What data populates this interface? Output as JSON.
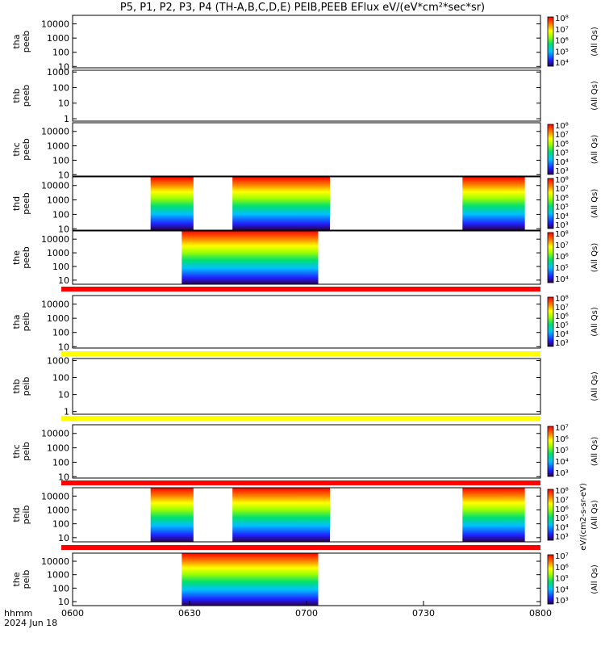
{
  "title": "P5, P1, P2, P3, P4 (TH-A,B,C,D,E) PEIB,PEEB EFlux eV/(eV*cm²*sec*sr)",
  "time_label": "hhmm",
  "date_label": "2024 Jun 18",
  "colors": {
    "red_bar": "#ff0000",
    "yellow_bar": "#ffff00",
    "frame": "#000000"
  },
  "chart_data": {
    "type": "heatmap",
    "x": {
      "start": "06:00",
      "end": "08:00",
      "ticks": [
        "0600",
        "0630",
        "0700",
        "0730",
        "0800"
      ]
    },
    "panels": [
      {
        "probe": "tha",
        "species": "peeb",
        "ylabel": [
          "tha",
          "peeb"
        ],
        "yscale": "log",
        "ylim": [
          8,
          40000
        ],
        "yticks": [
          "10",
          "100",
          "1000",
          "10000"
        ],
        "cb": {
          "ticks": [
            "10⁴",
            "10⁵",
            "10⁶",
            "10⁷",
            "10⁸"
          ],
          "label": "(All Qs)"
        },
        "intervals": []
      },
      {
        "probe": "thb",
        "species": "peeb",
        "ylabel": [
          "thb",
          "peeb"
        ],
        "yscale": "log",
        "ylim": [
          0.7,
          1300
        ],
        "yticks": [
          "1",
          "10",
          "100",
          "1000"
        ],
        "cb": {
          "ticks": [],
          "label": "(All Qs)"
        },
        "intervals": []
      },
      {
        "probe": "thc",
        "species": "peeb",
        "ylabel": [
          "thc",
          "peeb"
        ],
        "yscale": "log",
        "ylim": [
          8,
          40000
        ],
        "yticks": [
          "10",
          "100",
          "1000",
          "10000"
        ],
        "cb": {
          "ticks": [
            "10³",
            "10⁴",
            "10⁵",
            "10⁶",
            "10⁷",
            "10⁸"
          ],
          "label": "(All Qs)"
        },
        "intervals": []
      },
      {
        "probe": "thd",
        "species": "peeb",
        "ylabel": [
          "thd",
          "peeb"
        ],
        "yscale": "log",
        "ylim": [
          8,
          40000
        ],
        "yticks": [
          "10",
          "100",
          "1000",
          "10000"
        ],
        "cb": {
          "ticks": [
            "10³",
            "10⁴",
            "10⁵",
            "10⁶",
            "10⁷",
            "10⁸"
          ],
          "label": "(All Qs)"
        },
        "intervals": [
          [
            "06:20",
            "06:31"
          ],
          [
            "06:41",
            "07:06"
          ],
          [
            "07:40",
            "07:56"
          ]
        ]
      },
      {
        "probe": "the",
        "species": "peeb",
        "ylabel": [
          "the",
          "peeb"
        ],
        "yscale": "log",
        "ylim": [
          5,
          40000
        ],
        "yticks": [
          "10",
          "100",
          "1000",
          "10000"
        ],
        "cb": {
          "ticks": [
            "10⁴",
            "10⁵",
            "10⁶",
            "10⁷",
            "10⁸"
          ],
          "label": "(All Qs)"
        },
        "intervals": [
          [
            "06:28",
            "07:03"
          ]
        ]
      },
      {
        "probe": "tha",
        "species": "peib",
        "ylabel": [
          "tha",
          "peib"
        ],
        "yscale": "log",
        "ylim": [
          8,
          40000
        ],
        "yticks": [
          "10",
          "100",
          "1000",
          "10000"
        ],
        "cb": {
          "ticks": [
            "10³",
            "10⁴",
            "10⁵",
            "10⁶",
            "10⁷",
            "10⁸"
          ],
          "label": "(All Qs)"
        },
        "intervals": []
      },
      {
        "probe": "thb",
        "species": "peib",
        "ylabel": [
          "thb",
          "peib"
        ],
        "yscale": "log",
        "ylim": [
          0.7,
          1300
        ],
        "yticks": [
          "1",
          "10",
          "100",
          "1000"
        ],
        "cb": {
          "ticks": [],
          "label": "(All Qs)"
        },
        "intervals": []
      },
      {
        "probe": "thc",
        "species": "peib",
        "ylabel": [
          "thc",
          "peib"
        ],
        "yscale": "log",
        "ylim": [
          8,
          40000
        ],
        "yticks": [
          "10",
          "100",
          "1000",
          "10000"
        ],
        "cb": {
          "ticks": [
            "10³",
            "10⁴",
            "10⁵",
            "10⁶",
            "10⁷"
          ],
          "label": "(All Qs)"
        },
        "intervals": []
      },
      {
        "probe": "thd",
        "species": "peib",
        "ylabel": [
          "thd",
          "peib"
        ],
        "yscale": "log",
        "ylim": [
          5,
          40000
        ],
        "yticks": [
          "10",
          "100",
          "1000",
          "10000"
        ],
        "cb": {
          "ticks": [
            "10³",
            "10⁴",
            "10⁵",
            "10⁶",
            "10⁷",
            "10⁸"
          ],
          "label": "(All Qs)"
        },
        "intervals": [
          [
            "06:20",
            "06:31"
          ],
          [
            "06:41",
            "07:06"
          ],
          [
            "07:40",
            "07:56"
          ]
        ]
      },
      {
        "probe": "the",
        "species": "peib",
        "ylabel": [
          "the",
          "peib"
        ],
        "yscale": "log",
        "ylim": [
          5,
          40000
        ],
        "yticks": [
          "10",
          "100",
          "1000",
          "10000"
        ],
        "cb": {
          "ticks": [
            "10³",
            "10⁴",
            "10⁵",
            "10⁶",
            "10⁷"
          ],
          "label": "(All Qs)"
        },
        "intervals": [
          [
            "06:28",
            "07:03"
          ]
        ]
      }
    ],
    "colorbar_units": "eV/(cm2-s-sr-eV)"
  }
}
